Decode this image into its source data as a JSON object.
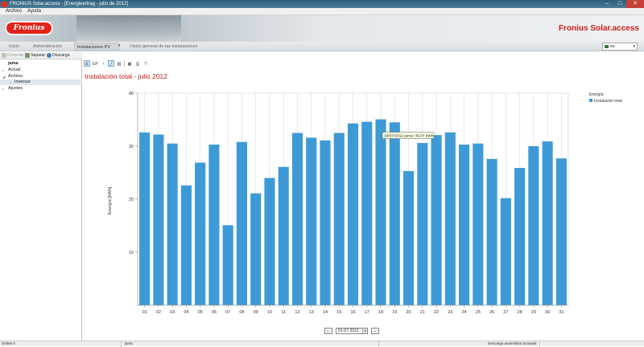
{
  "window": {
    "title": "FRONIUS Solar.access - [Energieertrag - julio de 2012]"
  },
  "menu": [
    "Archivo",
    "Ayuda"
  ],
  "banner": {
    "logo": "Fronius",
    "brand": "Fronius Solar.access"
  },
  "nav": {
    "items": [
      "Inicio",
      "Administración",
      "Instalaciones PV",
      "Visión general de las instalaciones"
    ],
    "active_index": 2,
    "language": "es"
  },
  "toolbar": {
    "connect": "Conectar",
    "separate": "Separar",
    "download": "Descarga"
  },
  "tree": {
    "root": "jama",
    "items": [
      {
        "label": "Actual",
        "level": 0
      },
      {
        "label": "Archivo",
        "level": 0,
        "selected": true
      },
      {
        "label": "Inversor",
        "level": 1
      },
      {
        "label": "Ajustes",
        "level": 0
      }
    ]
  },
  "chart_tools": [
    "E",
    "EP"
  ],
  "chart_title": "Instalación total - julio 2012",
  "chart_data": {
    "type": "bar",
    "ylabel": "Energía [kWh]",
    "ylim": [
      0,
      40
    ],
    "yticks": [
      10,
      20,
      30,
      40
    ],
    "categories": [
      "01",
      "02",
      "03",
      "04",
      "05",
      "06",
      "07",
      "08",
      "09",
      "10",
      "11",
      "12",
      "13",
      "14",
      "15",
      "16",
      "17",
      "18",
      "19",
      "20",
      "21",
      "22",
      "23",
      "24",
      "25",
      "26",
      "27",
      "28",
      "29",
      "30",
      "31"
    ],
    "series": [
      {
        "name": "Instalación total",
        "color": "#3d9ad6",
        "values": [
          32.6,
          32.2,
          30.5,
          22.6,
          26.9,
          30.3,
          15.1,
          30.8,
          21.1,
          24.0,
          26.1,
          32.5,
          31.6,
          31.1,
          32.5,
          34.3,
          34.6,
          35.07,
          34.5,
          25.3,
          30.6,
          32.1,
          32.6,
          30.3,
          30.5,
          27.6,
          20.2,
          25.9,
          30.0,
          30.9,
          27.7
        ]
      }
    ],
    "legend": {
      "title": "Energía",
      "position": "top-right"
    },
    "grid": "vertical",
    "tooltip": "18/07/2012 jama: 35,07 kWh"
  },
  "pager": {
    "date": "01-07-2012"
  },
  "status": {
    "left": "Online 0",
    "middle": "jama",
    "right": "Descarga automática activada"
  }
}
